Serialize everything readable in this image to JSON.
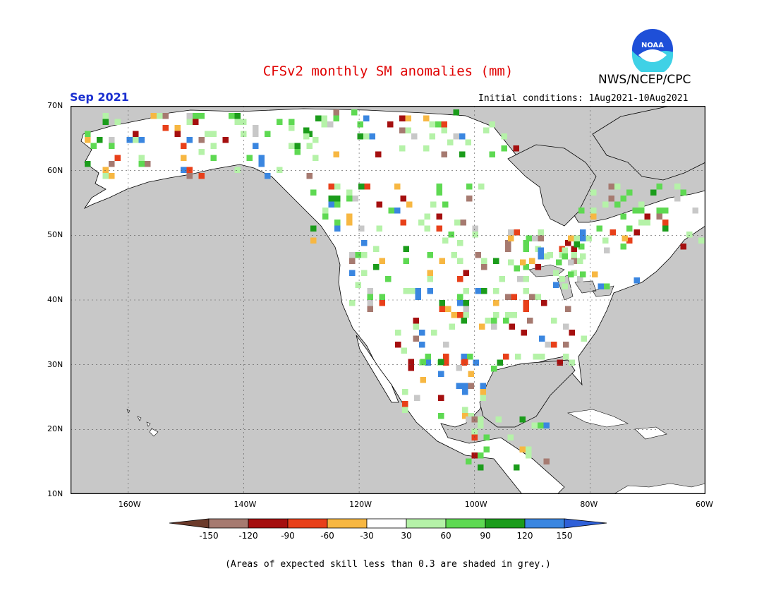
{
  "header": {
    "title": "CFSv2 monthly SM anomalies (mm)",
    "agency": "NWS/NCEP/CPC",
    "logo_text": "NOAA",
    "month": "Sep 2021",
    "initial_conditions": "Initial conditions: 1Aug2021-10Aug2021"
  },
  "axes": {
    "lat_labels": [
      "70N",
      "60N",
      "50N",
      "40N",
      "30N",
      "20N",
      "10N"
    ],
    "lon_labels": [
      "160W",
      "140W",
      "120W",
      "100W",
      "80W",
      "60W"
    ],
    "lat_range": [
      10,
      70
    ],
    "lon_range": [
      -170,
      -60
    ]
  },
  "legend": {
    "ticks": [
      "-150",
      "-120",
      "-90",
      "-60",
      "-30",
      "30",
      "60",
      "90",
      "120",
      "150"
    ],
    "colors": [
      "#6b3a2a",
      "#a67a70",
      "#a50f0f",
      "#e8401a",
      "#f7b742",
      "#ffffff",
      "#b5f2a8",
      "#5ed952",
      "#1b9c1b",
      "#3a86e0",
      "#2f60d8"
    ]
  },
  "map_colors": {
    "ocean": "#c8c8c8",
    "land": "#ffffff",
    "low_skill": "#c8c8c8",
    "coast": "#000000"
  },
  "footnote": "(Areas of expected skill less than 0.3 are shaded in grey.)"
}
